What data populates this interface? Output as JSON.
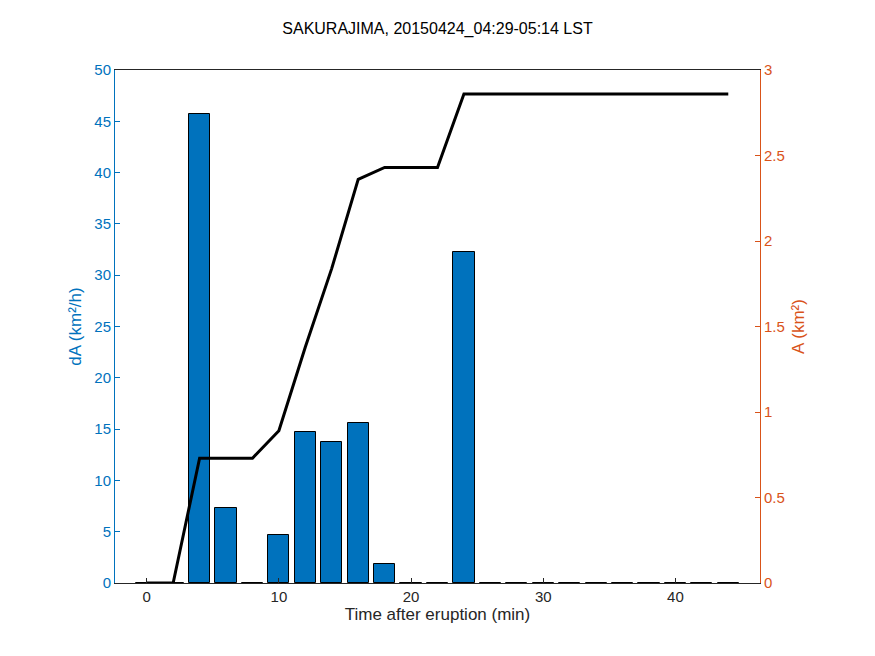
{
  "chart_data": {
    "type": "bar",
    "title": "SAKURAJIMA, 20150424_04:29-05:14 LST",
    "x_label": "Time after eruption (min)",
    "y_label": "dA (km²/h)",
    "y2_label": "A (km²)",
    "x": [
      0,
      2,
      4,
      6,
      8,
      10,
      12,
      14,
      16,
      18,
      20,
      22,
      24,
      26,
      28,
      30,
      32,
      34,
      36,
      38,
      40,
      42,
      44
    ],
    "series": [
      {
        "type": "bar",
        "axis": "y",
        "color": "#0072BD",
        "values": [
          0,
          0,
          45.7,
          7.3,
          0,
          4.7,
          14.7,
          13.7,
          15.6,
          1.9,
          0,
          0,
          32.3,
          0,
          0,
          0,
          0,
          0,
          0,
          0,
          0,
          0,
          0
        ]
      },
      {
        "type": "line",
        "axis": "y2",
        "color": "#000000",
        "values": [
          0,
          0,
          0.73,
          0.73,
          0.73,
          0.89,
          1.38,
          1.84,
          2.36,
          2.43,
          2.43,
          2.43,
          2.86,
          2.86,
          2.86,
          2.86,
          2.86,
          2.86,
          2.86,
          2.86,
          2.86,
          2.86,
          2.86
        ]
      }
    ],
    "xlim": [
      -2.4,
      46.4
    ],
    "xticks": [
      0,
      10,
      20,
      30,
      40
    ],
    "ylim": [
      0,
      50
    ],
    "yticks": [
      0,
      5,
      10,
      15,
      20,
      25,
      30,
      35,
      40,
      45,
      50
    ],
    "y2lim": [
      0,
      3
    ],
    "y2ticks": [
      0,
      0.5,
      1,
      1.5,
      2,
      2.5,
      3
    ],
    "grid": false
  }
}
